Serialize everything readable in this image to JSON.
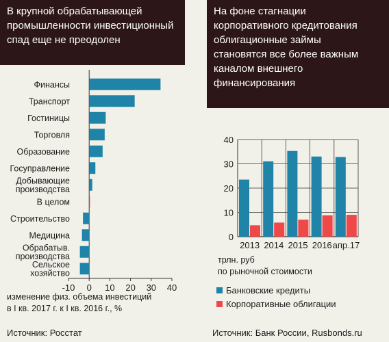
{
  "left_panel": {
    "title_lines": [
      "В крупной обрабатывающей",
      "промышленности инвестиционный",
      "спад еще не преодолен"
    ],
    "xlabel_lines": [
      "изменение физ. объема инвестиций",
      "в I кв. 2017 г. к I кв. 2016 г., %"
    ],
    "source": "Источник: Росстат"
  },
  "right_panel": {
    "title_lines": [
      "На фоне стагнации",
      "корпоративного кредитования",
      "облигационные займы",
      "становятся все более важным",
      "каналом внешнего",
      "финансирования"
    ],
    "unit_lines": [
      "трлн. руб",
      "по рыночной стоимости"
    ],
    "legend": [
      "Банковские кредиты",
      "Корпоративные облигации"
    ],
    "source": "Источник: Банк России, Rusbonds.ru"
  },
  "colors": {
    "blue": "#1f84a8",
    "red": "#ee4849",
    "header_bg": "#2c1617",
    "background": "#f2f1e9"
  },
  "chart_data": [
    {
      "type": "bar",
      "orientation": "horizontal",
      "categories": [
        "Финансы",
        "Транспорт",
        "Гостиницы",
        "Торговля",
        "Образование",
        "Госуправление",
        "Добывающие\nпроизводства",
        "В целом",
        "Строительство",
        "Медицина",
        "Обрабатыв.\nпроизводства",
        "Сельское\nхозяйство"
      ],
      "values": [
        34.5,
        22,
        8,
        7.5,
        6.5,
        3,
        1.5,
        0.3,
        -3,
        -3.5,
        -4.5,
        -4.5
      ],
      "xlim": [
        -10,
        40
      ],
      "xticks": [
        -10,
        0,
        10,
        20,
        30,
        40
      ],
      "highlight": {
        "category": "В целом",
        "color": "#ee4849"
      },
      "title": "В крупной обрабатывающей промышленности инвестиционный спад еще не преодолен",
      "xlabel": "изменение физ. объема инвестиций в I кв. 2017 г. к I кв. 2016 г., %"
    },
    {
      "type": "bar",
      "categories": [
        "2013",
        "2014",
        "2015",
        "2016",
        "апр.17"
      ],
      "series": [
        {
          "name": "Банковские кредиты",
          "values": [
            23.5,
            31,
            35.3,
            33,
            32.8
          ]
        },
        {
          "name": "Корпоративные облигации",
          "values": [
            4.7,
            5.8,
            7,
            8.8,
            9
          ]
        }
      ],
      "ylim": [
        0,
        40
      ],
      "yticks": [
        0,
        10,
        20,
        30,
        40
      ],
      "ylabel": "трлн. руб по рыночной стоимости",
      "legend_position": "bottom"
    }
  ]
}
